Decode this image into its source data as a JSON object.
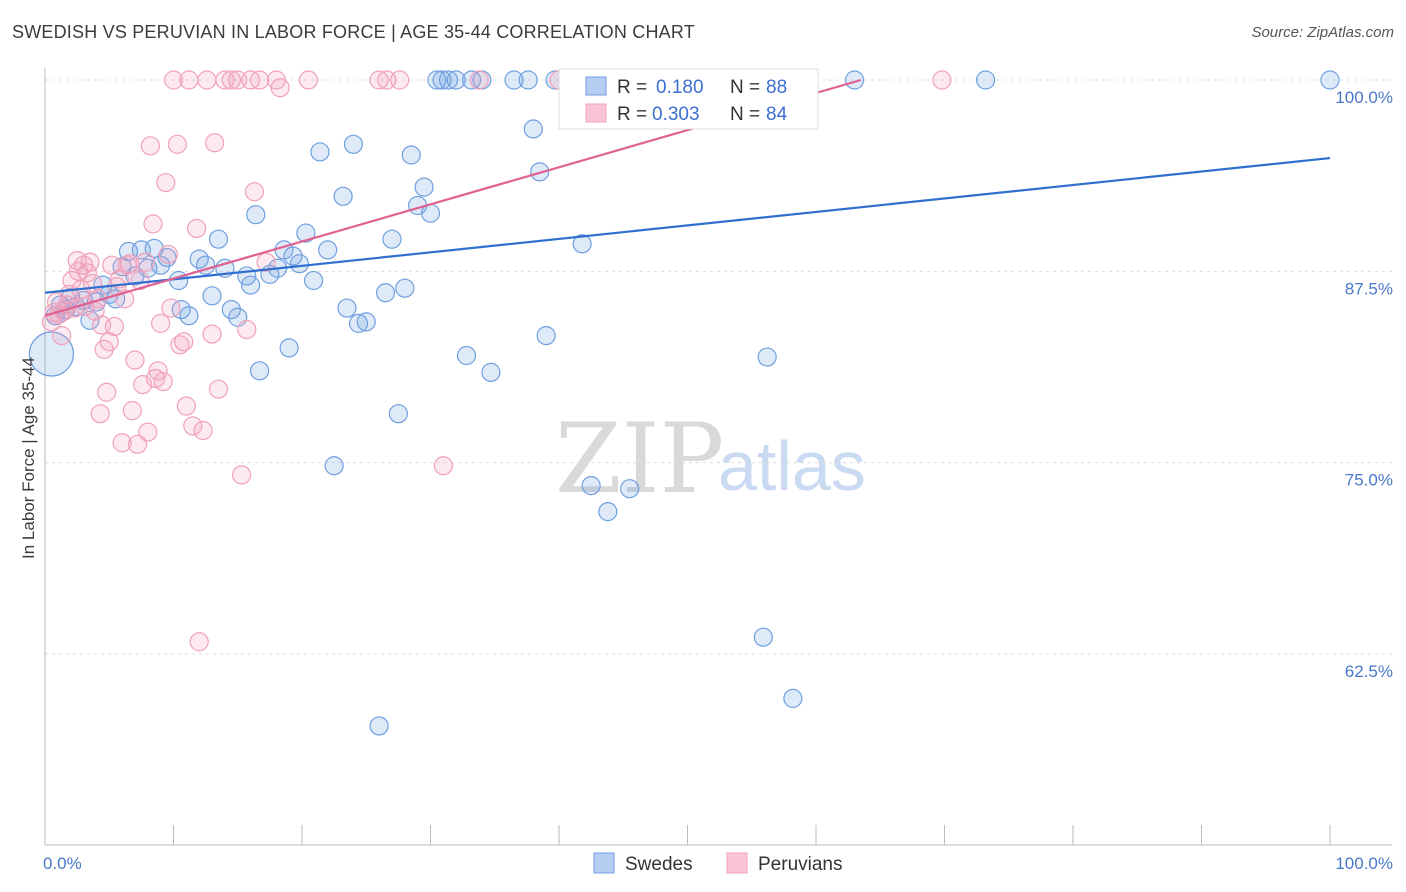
{
  "title": "SWEDISH VS PERUVIAN IN LABOR FORCE | AGE 35-44 CORRELATION CHART",
  "source": "Source: ZipAtlas.com",
  "watermark": {
    "zip": "ZIP",
    "atlas": "atlas"
  },
  "colors": {
    "swedes": "#6f9fe0",
    "swedes_line": "#2f6fcf",
    "peruvians": "#f0a0bc",
    "peruvians_line": "#e06090",
    "tick": "#4a78c8"
  },
  "chart_data": {
    "type": "scatter",
    "title": "SWEDISH VS PERUVIAN IN LABOR FORCE | AGE 35-44 CORRELATION CHART",
    "xlabel": "",
    "ylabel": "In Labor Force | Age 35-44",
    "xlim": [
      0,
      100
    ],
    "ylim": [
      51,
      101.5
    ],
    "x_tick_labels": [
      "0.0%",
      "100.0%"
    ],
    "y_ticks": [
      62.5,
      75.0,
      87.5,
      100.0
    ],
    "y_tick_labels": [
      "62.5%",
      "75.0%",
      "87.5%",
      "100.0%"
    ],
    "grid": true,
    "legend": [
      {
        "name": "Swedes",
        "r_label": "R = ",
        "r": "0.180",
        "n_label": "N = ",
        "n": "88"
      },
      {
        "name": "Peruvians",
        "r_label": "R = ",
        "r": "0.303",
        "n_label": "N = ",
        "n": "84"
      }
    ],
    "series": [
      {
        "name": "Swedes",
        "trend": {
          "x": [
            0,
            100
          ],
          "y": [
            86.1,
            94.9
          ]
        },
        "points": [
          [
            0.5,
            82.1
          ],
          [
            0.8,
            84.6
          ],
          [
            1.2,
            85.3
          ],
          [
            1.6,
            85.0
          ],
          [
            2.0,
            85.8
          ],
          [
            2.4,
            85.2
          ],
          [
            3.0,
            85.6
          ],
          [
            3.5,
            84.3
          ],
          [
            4.0,
            85.5
          ],
          [
            4.5,
            86.6
          ],
          [
            5.0,
            86.0
          ],
          [
            5.5,
            85.7
          ],
          [
            6.0,
            87.8
          ],
          [
            6.5,
            88.8
          ],
          [
            7.0,
            87.2
          ],
          [
            7.5,
            88.9
          ],
          [
            8.0,
            87.7
          ],
          [
            8.5,
            89.0
          ],
          [
            9.0,
            87.9
          ],
          [
            9.5,
            88.4
          ],
          [
            10.4,
            86.9
          ],
          [
            10.6,
            85.0
          ],
          [
            11.2,
            84.6
          ],
          [
            12.0,
            88.3
          ],
          [
            12.5,
            87.9
          ],
          [
            13.0,
            85.9
          ],
          [
            13.5,
            89.6
          ],
          [
            14.0,
            87.7
          ],
          [
            14.5,
            85.0
          ],
          [
            15.0,
            84.5
          ],
          [
            15.7,
            87.2
          ],
          [
            16.0,
            86.6
          ],
          [
            16.4,
            91.2
          ],
          [
            16.7,
            81.0
          ],
          [
            17.5,
            87.3
          ],
          [
            18.1,
            87.7
          ],
          [
            18.6,
            88.9
          ],
          [
            19.0,
            82.5
          ],
          [
            19.3,
            88.5
          ],
          [
            19.8,
            88.0
          ],
          [
            20.3,
            90.0
          ],
          [
            20.9,
            86.9
          ],
          [
            21.4,
            95.3
          ],
          [
            22.0,
            88.9
          ],
          [
            22.5,
            74.8
          ],
          [
            23.2,
            92.4
          ],
          [
            23.5,
            85.1
          ],
          [
            24.0,
            95.8
          ],
          [
            24.4,
            84.1
          ],
          [
            25.0,
            84.2
          ],
          [
            26.0,
            57.8
          ],
          [
            26.5,
            86.1
          ],
          [
            27.0,
            89.6
          ],
          [
            27.5,
            78.2
          ],
          [
            28.0,
            86.4
          ],
          [
            28.5,
            95.1
          ],
          [
            29.0,
            91.8
          ],
          [
            29.5,
            93.0
          ],
          [
            30.0,
            91.3
          ],
          [
            30.5,
            100.0
          ],
          [
            30.9,
            100.0
          ],
          [
            31.4,
            100.0
          ],
          [
            32.0,
            100.0
          ],
          [
            32.8,
            82.0
          ],
          [
            33.2,
            100.0
          ],
          [
            34.0,
            100.0
          ],
          [
            34.7,
            80.9
          ],
          [
            36.5,
            100.0
          ],
          [
            37.6,
            100.0
          ],
          [
            38.0,
            96.8
          ],
          [
            38.5,
            94.0
          ],
          [
            39.0,
            83.3
          ],
          [
            39.7,
            100.0
          ],
          [
            41.0,
            100.0
          ],
          [
            41.8,
            89.3
          ],
          [
            42.5,
            73.5
          ],
          [
            43.2,
            100.0
          ],
          [
            43.8,
            71.8
          ],
          [
            45.0,
            100.0
          ],
          [
            45.5,
            73.3
          ],
          [
            48.0,
            100.0
          ],
          [
            52.2,
            100.0
          ],
          [
            55.9,
            63.6
          ],
          [
            56.2,
            81.9
          ],
          [
            58.2,
            59.6
          ],
          [
            63.0,
            100.0
          ],
          [
            73.2,
            100.0
          ],
          [
            100.0,
            100.0
          ]
        ]
      },
      {
        "name": "Peruvians",
        "trend": {
          "x": [
            0,
            63.5
          ],
          "y": [
            84.6,
            100.0
          ]
        },
        "points": [
          [
            0.5,
            84.2
          ],
          [
            0.7,
            84.8
          ],
          [
            0.9,
            85.5
          ],
          [
            1.1,
            84.7
          ],
          [
            1.3,
            83.3
          ],
          [
            1.5,
            84.9
          ],
          [
            1.7,
            85.3
          ],
          [
            1.9,
            86.0
          ],
          [
            2.1,
            86.9
          ],
          [
            2.3,
            85.1
          ],
          [
            2.5,
            88.2
          ],
          [
            2.6,
            87.5
          ],
          [
            2.8,
            86.3
          ],
          [
            3.0,
            87.9
          ],
          [
            3.1,
            85.2
          ],
          [
            3.3,
            87.4
          ],
          [
            3.5,
            88.1
          ],
          [
            3.7,
            86.7
          ],
          [
            3.9,
            84.9
          ],
          [
            4.1,
            85.7
          ],
          [
            4.3,
            78.2
          ],
          [
            4.4,
            84.0
          ],
          [
            4.6,
            82.4
          ],
          [
            4.8,
            79.6
          ],
          [
            5.0,
            82.9
          ],
          [
            5.2,
            87.9
          ],
          [
            5.4,
            83.9
          ],
          [
            5.6,
            86.5
          ],
          [
            5.8,
            87.0
          ],
          [
            6.0,
            76.3
          ],
          [
            6.2,
            85.7
          ],
          [
            6.4,
            87.9
          ],
          [
            6.6,
            88.0
          ],
          [
            6.8,
            78.4
          ],
          [
            7.0,
            81.7
          ],
          [
            7.2,
            76.2
          ],
          [
            7.4,
            86.9
          ],
          [
            7.6,
            80.1
          ],
          [
            7.8,
            88.1
          ],
          [
            8.0,
            77.0
          ],
          [
            8.2,
            95.7
          ],
          [
            8.4,
            90.6
          ],
          [
            8.6,
            80.5
          ],
          [
            8.8,
            81.0
          ],
          [
            9.0,
            84.1
          ],
          [
            9.2,
            80.3
          ],
          [
            9.4,
            93.3
          ],
          [
            9.6,
            88.6
          ],
          [
            9.8,
            85.1
          ],
          [
            10.0,
            100.0
          ],
          [
            10.3,
            95.8
          ],
          [
            10.5,
            82.7
          ],
          [
            10.8,
            82.9
          ],
          [
            11.0,
            78.7
          ],
          [
            11.2,
            100.0
          ],
          [
            11.5,
            77.4
          ],
          [
            11.8,
            90.3
          ],
          [
            12.0,
            63.3
          ],
          [
            12.3,
            77.1
          ],
          [
            12.6,
            100.0
          ],
          [
            13.0,
            83.4
          ],
          [
            13.2,
            95.9
          ],
          [
            13.5,
            79.8
          ],
          [
            14.0,
            100.0
          ],
          [
            14.5,
            100.0
          ],
          [
            15.0,
            100.0
          ],
          [
            15.3,
            74.2
          ],
          [
            15.7,
            83.7
          ],
          [
            16.0,
            100.0
          ],
          [
            16.3,
            92.7
          ],
          [
            16.7,
            100.0
          ],
          [
            17.2,
            88.1
          ],
          [
            18.0,
            100.0
          ],
          [
            18.3,
            99.5
          ],
          [
            20.5,
            100.0
          ],
          [
            26.0,
            100.0
          ],
          [
            26.6,
            100.0
          ],
          [
            27.6,
            100.0
          ],
          [
            31.0,
            74.8
          ],
          [
            33.8,
            100.0
          ],
          [
            40.0,
            100.0
          ],
          [
            44.0,
            100.0
          ],
          [
            58.0,
            100.0
          ],
          [
            69.8,
            100.0
          ]
        ]
      }
    ]
  }
}
